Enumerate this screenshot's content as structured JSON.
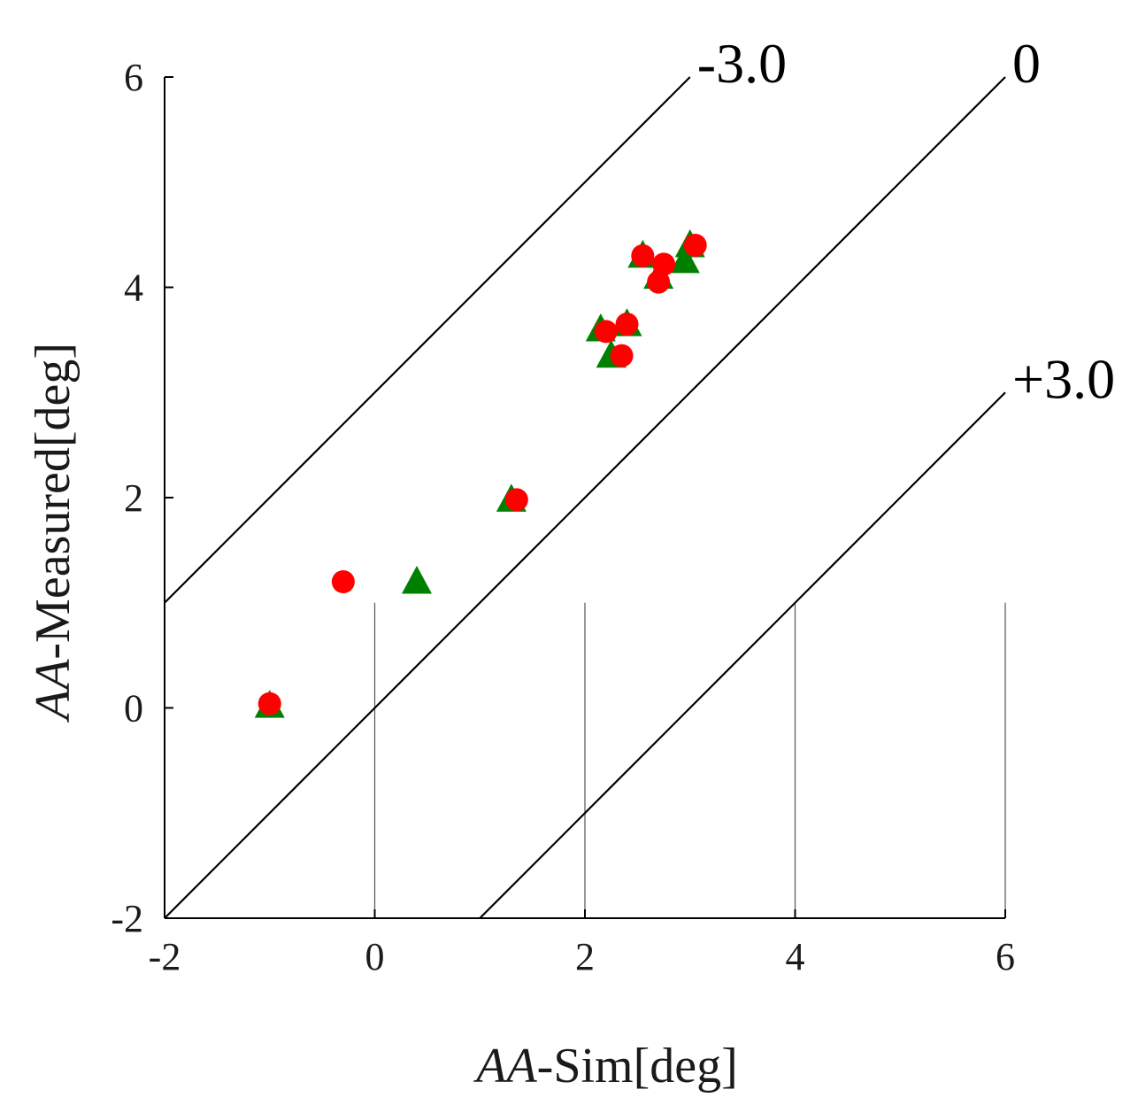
{
  "chart_data": {
    "type": "scatter",
    "title": "",
    "xlabel": {
      "italic": "AA",
      "rest": "-Sim[deg]"
    },
    "ylabel": {
      "italic": "AA",
      "rest": "-Measured[deg]"
    },
    "xlim": [
      -2,
      6
    ],
    "ylim": [
      -2,
      6
    ],
    "xticks": [
      -2,
      0,
      2,
      4,
      6
    ],
    "yticks": [
      -2,
      0,
      2,
      4,
      6
    ],
    "xtick_labels": [
      "-2",
      "0",
      "2",
      "4",
      "6"
    ],
    "ytick_labels": [
      "-2",
      "0",
      "2",
      "4",
      "6"
    ],
    "grid_x": [
      0,
      2,
      4,
      6
    ],
    "grid_y_range": [
      -2,
      1
    ],
    "reference_lines": [
      {
        "label": "-3.0",
        "offset": 3.0,
        "from_x": -2,
        "to_x": 3.0
      },
      {
        "label": "0",
        "offset": 0.0,
        "from_x": -2,
        "to_x": 6
      },
      {
        "label": "+3.0",
        "offset": -3.0,
        "from_x": 1.0,
        "to_x": 6
      }
    ],
    "series": [
      {
        "name": "triangles",
        "marker": "triangle",
        "color": "#008000",
        "points": [
          [
            -1.0,
            0.02
          ],
          [
            0.4,
            1.2
          ],
          [
            1.3,
            1.98
          ],
          [
            2.15,
            3.6
          ],
          [
            2.25,
            3.35
          ],
          [
            2.4,
            3.65
          ],
          [
            2.55,
            4.3
          ],
          [
            2.7,
            4.1
          ],
          [
            2.95,
            4.25
          ],
          [
            3.0,
            4.4
          ]
        ]
      },
      {
        "name": "circles",
        "marker": "circle",
        "color": "#ff0000",
        "points": [
          [
            -1.0,
            0.04
          ],
          [
            -0.3,
            1.2
          ],
          [
            1.35,
            1.98
          ],
          [
            2.2,
            3.58
          ],
          [
            2.35,
            3.35
          ],
          [
            2.4,
            3.65
          ],
          [
            2.55,
            4.3
          ],
          [
            2.7,
            4.05
          ],
          [
            2.75,
            4.22
          ],
          [
            3.05,
            4.4
          ]
        ]
      }
    ]
  }
}
